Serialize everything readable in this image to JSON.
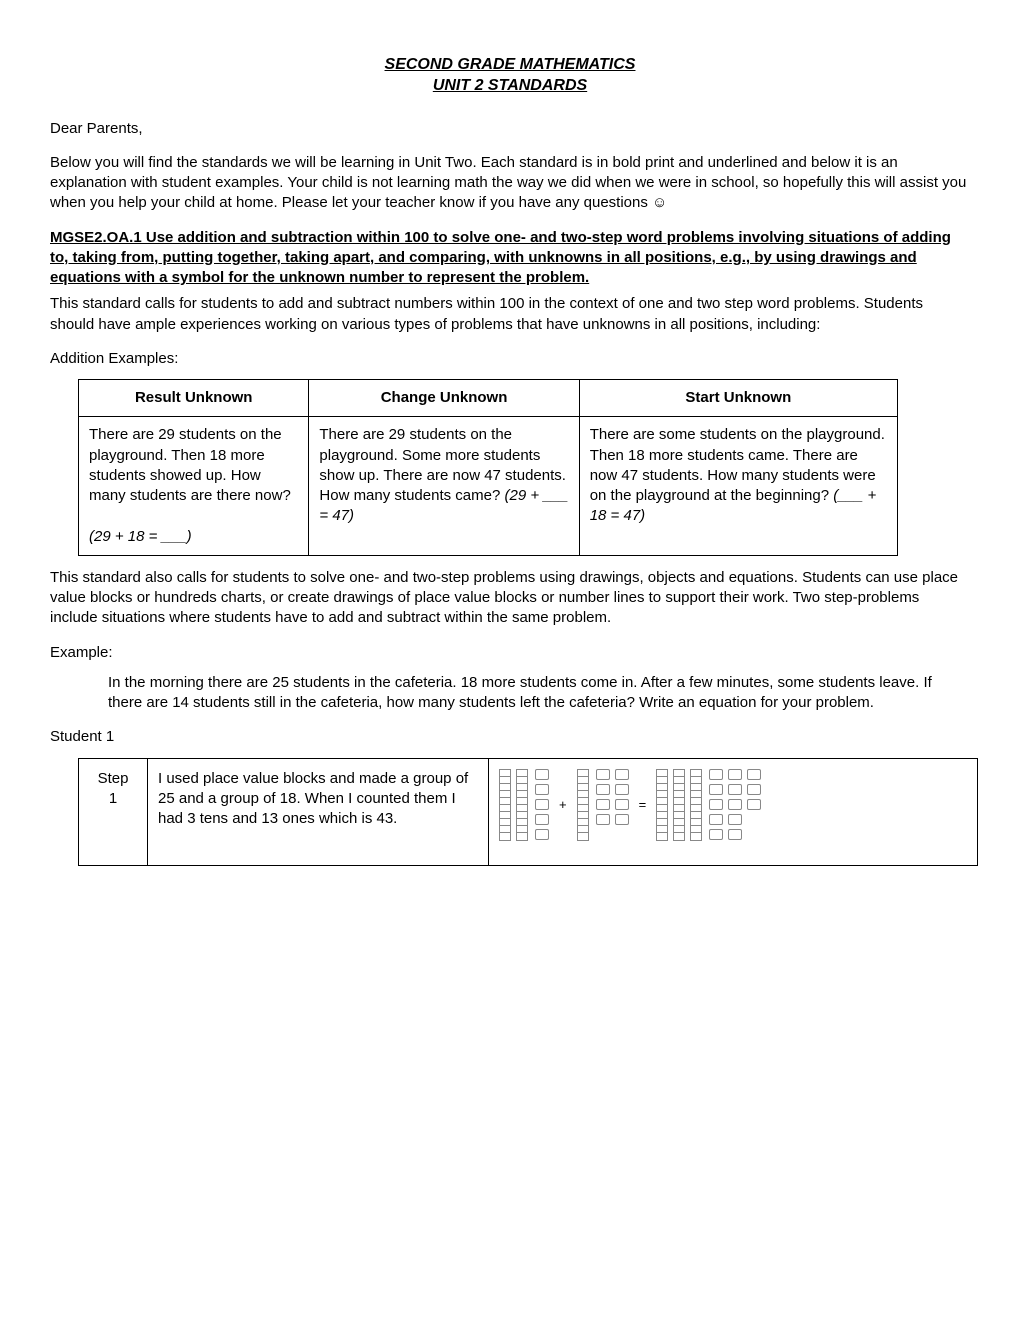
{
  "title": {
    "line1": "SECOND GRADE MATHEMATICS",
    "line2": "UNIT 2 STANDARDS"
  },
  "greeting": "Dear Parents,",
  "intro": "Below you will find the standards we will be learning in Unit Two.  Each standard is in bold print and underlined and below it is an explanation with student examples.  Your child is not learning math the way we did when we were in school, so hopefully this will assist you when you help your child at home.  Please let your teacher know if you have any questions ☺",
  "standard_heading": "MGSE2.OA.1 Use addition and subtraction within 100 to solve one- and two-step word problems involving situations of adding to, taking from, putting together, taking apart, and comparing, with unknowns in all positions, e.g., by using drawings and equations with a symbol for the unknown number to represent the problem.",
  "standard_body": "This standard calls for students to add and subtract numbers within 100 in the context of one and two step word problems. Students should have ample experiences working on various types of problems that have unknowns in all positions, including:",
  "addition_label": "Addition Examples:",
  "addition_table": {
    "headers": [
      "Result Unknown",
      "Change Unknown",
      "Start Unknown"
    ],
    "rows": [
      {
        "text": "There are 29 students on the playground.  Then 18 more students showed up.  How many students are there now?",
        "eq": "(29 + 18 = ___)"
      },
      {
        "text": "There are 29 students on the playground.  Some more students show up.  There are now 47 students.  How many students came?",
        "eq": "(29 + ___ = 47)"
      },
      {
        "text": "There are some students on the playground.  Then 18 more students came.  There are now 47 students.  How many students were on the playground at the beginning?",
        "eq": "(___ + 18 = 47)"
      }
    ]
  },
  "standard_body2": "This standard also calls for students to solve one- and two-step problems using drawings, objects and equations. Students can use place value blocks or hundreds charts, or create drawings of place value blocks or number lines to support their work.  Two step-problems include situations where students have to add and subtract within the same problem.",
  "example_label": "Example:",
  "example_text": "In the morning there are 25 students in the cafeteria. 18 more students come in. After a few minutes, some students leave. If there are 14 students still in the cafeteria, how many students left the cafeteria? Write an equation for your problem.",
  "student1_label": "Student 1",
  "student1": {
    "step_label_line1": "Step",
    "step_label_line2": "1",
    "desc": "I used place value blocks and made a group of 25 and a group of 18.  When I counted them I had 3 tens and 13 ones which is 43.",
    "visual": {
      "group1": {
        "tens": 2,
        "ones": 5
      },
      "op1": "+",
      "group2": {
        "tens": 1,
        "ones_cols": [
          4,
          4
        ]
      },
      "op2": "=",
      "group3": {
        "tens": 3,
        "ones_cols": [
          5,
          5,
          3
        ]
      }
    }
  }
}
